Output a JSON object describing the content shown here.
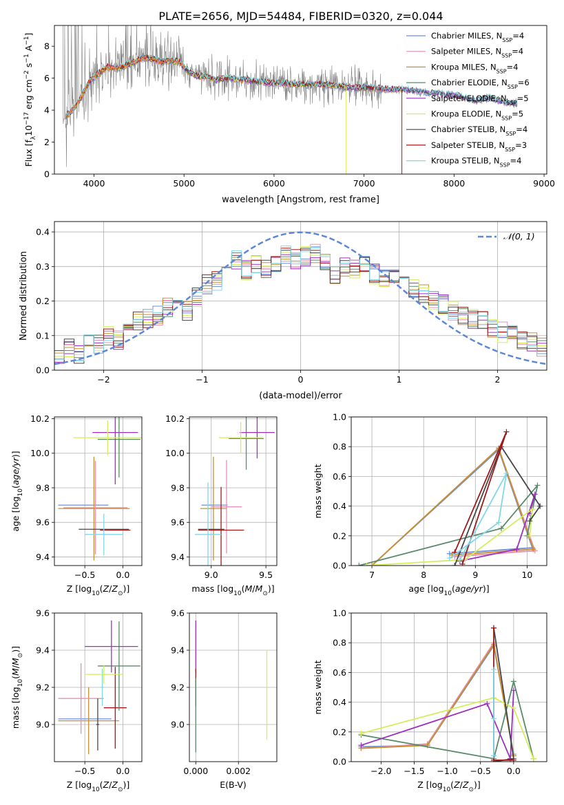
{
  "figure_title": "PLATE=2656, MJD=54484, FIBERID=0320, z=0.044",
  "colors": {
    "Chabrier MILES": "#6b8fdc",
    "Salpeter MILES": "#e68fb6",
    "Kroupa MILES": "#c8902a",
    "Chabrier ELODIE": "#5a8a6a",
    "Salpeter ELODIE": "#9b30c0",
    "Kroupa ELODIE": "#d4ee5a",
    "Chabrier STELIB": "#454545",
    "Salpeter STELIB": "#a01818",
    "Kroupa STELIB": "#7fd8e6",
    "data": "#808080",
    "fit_orange": "#e8783a",
    "gaussian": "#5b87d6",
    "grid": "#b0b0b0"
  },
  "chart_data": [
    {
      "id": "spectrum",
      "type": "line",
      "title": "PLATE=2656, MJD=54484, FIBERID=0320, z=0.044",
      "xlabel": "wavelength [Angstrom, rest frame]",
      "ylabel": "Flux [f_λ 10^-17 erg cm^-2 s^-1 A^-1]",
      "xlim": [
        3560,
        9030
      ],
      "ylim": [
        0,
        9.3
      ],
      "xticks": [
        4000,
        5000,
        6000,
        7000,
        8000,
        9000
      ],
      "yticks": [
        0,
        2,
        4,
        6,
        8
      ],
      "grid": false,
      "legend_position": "top-right",
      "legend": [
        {
          "name": "Chabrier MILES",
          "nssp": "4"
        },
        {
          "name": "Salpeter MILES",
          "nssp": "4"
        },
        {
          "name": "Kroupa MILES",
          "nssp": "4"
        },
        {
          "name": "Chabrier ELODIE",
          "nssp": "6"
        },
        {
          "name": "Salpeter ELODIE",
          "nssp": "5"
        },
        {
          "name": "Kroupa ELODIE",
          "nssp": "5"
        },
        {
          "name": "Chabrier STELIB",
          "nssp": "4"
        },
        {
          "name": "Salpeter STELIB",
          "nssp": "3"
        },
        {
          "name": "Kroupa STELIB",
          "nssp": "4"
        }
      ],
      "continuum": [
        [
          3680,
          3.6
        ],
        [
          3750,
          3.9
        ],
        [
          3850,
          4.7
        ],
        [
          3950,
          5.8
        ],
        [
          4050,
          6.3
        ],
        [
          4150,
          6.7
        ],
        [
          4250,
          6.6
        ],
        [
          4350,
          6.8
        ],
        [
          4450,
          7.0
        ],
        [
          4550,
          7.3
        ],
        [
          4650,
          7.2
        ],
        [
          4750,
          7.0
        ],
        [
          4850,
          7.1
        ],
        [
          4950,
          7.0
        ],
        [
          5050,
          6.4
        ],
        [
          5150,
          6.1
        ],
        [
          5250,
          6.1
        ],
        [
          5350,
          5.9
        ],
        [
          5500,
          6.0
        ],
        [
          5650,
          5.9
        ],
        [
          5800,
          5.8
        ],
        [
          5950,
          5.7
        ],
        [
          6100,
          5.7
        ],
        [
          6250,
          5.6
        ],
        [
          6400,
          5.6
        ],
        [
          6550,
          5.6
        ],
        [
          6700,
          5.5
        ],
        [
          6850,
          5.4
        ],
        [
          7000,
          5.4
        ],
        [
          7150,
          5.35
        ],
        [
          7300,
          5.3
        ],
        [
          7450,
          5.3
        ],
        [
          7600,
          5.2
        ],
        [
          7750,
          5.1
        ],
        [
          7900,
          5.0
        ],
        [
          8050,
          4.9
        ],
        [
          8150,
          4.7
        ],
        [
          8250,
          4.6
        ],
        [
          8400,
          4.8
        ],
        [
          8550,
          4.5
        ],
        [
          8700,
          4.4
        ]
      ],
      "data_end": 8700,
      "data_noise_peak_region": [
        3650,
        7200
      ]
    },
    {
      "id": "residuals",
      "type": "line",
      "xlabel": "(data-model)/error",
      "ylabel": "Normed distribution",
      "xlim": [
        -2.5,
        2.5
      ],
      "ylim": [
        0,
        0.43
      ],
      "xticks": [
        -2,
        -1,
        0,
        1,
        2
      ],
      "yticks": [
        0.0,
        0.1,
        0.2,
        0.3,
        0.4
      ],
      "grid": true,
      "legend_position": "top-right",
      "legend": [
        {
          "name": "𝒩(0, 1)"
        }
      ],
      "gaussian": {
        "mu": 0,
        "sigma": 1
      },
      "bins": [
        -2.5,
        -2.4,
        -2.3,
        -2.2,
        -2.1,
        -2.0,
        -1.9,
        -1.8,
        -1.7,
        -1.6,
        -1.5,
        -1.4,
        -1.3,
        -1.2,
        -1.1,
        -1.0,
        -0.9,
        -0.8,
        -0.7,
        -0.6,
        -0.5,
        -0.4,
        -0.3,
        -0.2,
        -0.1,
        0.0,
        0.1,
        0.2,
        0.3,
        0.4,
        0.5,
        0.6,
        0.7,
        0.8,
        0.9,
        1.0,
        1.1,
        1.2,
        1.3,
        1.4,
        1.5,
        1.6,
        1.7,
        1.8,
        1.9,
        2.0,
        2.1,
        2.2,
        2.3,
        2.4
      ],
      "base_hist": [
        0.035,
        0.06,
        0.045,
        0.085,
        0.075,
        0.1,
        0.09,
        0.13,
        0.14,
        0.15,
        0.16,
        0.18,
        0.2,
        0.17,
        0.21,
        0.25,
        0.26,
        0.3,
        0.32,
        0.29,
        0.31,
        0.29,
        0.3,
        0.33,
        0.32,
        0.33,
        0.34,
        0.32,
        0.28,
        0.3,
        0.29,
        0.31,
        0.28,
        0.27,
        0.26,
        0.25,
        0.24,
        0.22,
        0.2,
        0.19,
        0.17,
        0.16,
        0.15,
        0.14,
        0.12,
        0.11,
        0.1,
        0.09,
        0.08,
        0.07
      ]
    },
    {
      "id": "age_vs_Z",
      "type": "scatter",
      "xlabel": "Z [log10(Z/Z⊙)]",
      "ylabel": "age  [log10(age/yr)]",
      "xlim": [
        -0.9,
        0.25
      ],
      "ylim": [
        9.35,
        10.21
      ],
      "xticks": [
        -0.5,
        0.0
      ],
      "yticks": [
        9.4,
        9.6,
        9.8,
        10.0,
        10.2
      ],
      "grid": true,
      "points": [
        {
          "s": "Chabrier MILES",
          "x": -0.52,
          "y": 9.7,
          "xerr": 0.33,
          "yerr": 0.0
        },
        {
          "s": "Kroupa MILES",
          "x": -0.38,
          "y": 9.68,
          "xerr": 0.47,
          "yerr": 0.3
        },
        {
          "s": "Salpeter MILES",
          "x": -0.36,
          "y": 9.685,
          "xerr": 0.42,
          "yerr": 0.27
        },
        {
          "s": "Chabrier STELIB",
          "x": -0.25,
          "y": 9.56,
          "xerr": 0.33,
          "yerr": 0.0
        },
        {
          "s": "Salpeter STELIB",
          "x": -0.1,
          "y": 9.555,
          "xerr": 0.2,
          "yerr": 0.0
        },
        {
          "s": "Kroupa STELIB",
          "x": -0.25,
          "y": 9.53,
          "xerr": 0.25,
          "yerr": 0.12
        },
        {
          "s": "Chabrier ELODIE",
          "x": -0.05,
          "y": 10.08,
          "xerr": 0.28,
          "yerr": 0.22
        },
        {
          "s": "Salpeter ELODIE",
          "x": -0.1,
          "y": 10.12,
          "xerr": 0.3,
          "yerr": 0.3
        },
        {
          "s": "Kroupa ELODIE",
          "x": -0.2,
          "y": 10.09,
          "xerr": 0.45,
          "yerr": 0.1
        }
      ]
    },
    {
      "id": "age_vs_mass",
      "type": "scatter",
      "xlabel": "mass [log10(M/M⊙)]",
      "ylabel": "",
      "xlim": [
        8.8,
        9.6
      ],
      "ylim": [
        9.35,
        10.21
      ],
      "xticks": [
        9.0,
        9.5
      ],
      "yticks": [
        9.4,
        9.6,
        9.8,
        10.0,
        10.2
      ],
      "grid": true,
      "points": [
        {
          "s": "Chabrier MILES",
          "x": 9.03,
          "y": 9.7,
          "xerr": 0.12,
          "yerr": 0.0
        },
        {
          "s": "Kroupa MILES",
          "x": 9.02,
          "y": 9.68,
          "xerr": 0.12,
          "yerr": 0.3
        },
        {
          "s": "Salpeter MILES",
          "x": 9.14,
          "y": 9.69,
          "xerr": 0.14,
          "yerr": 0.27
        },
        {
          "s": "Chabrier STELIB",
          "x": 9.0,
          "y": 9.56,
          "xerr": 0.12,
          "yerr": 0.0
        },
        {
          "s": "Salpeter STELIB",
          "x": 9.09,
          "y": 9.555,
          "xerr": 0.21,
          "yerr": 0.25
        },
        {
          "s": "Kroupa STELIB",
          "x": 8.97,
          "y": 9.53,
          "xerr": 0.12,
          "yerr": 0.3
        },
        {
          "s": "Chabrier ELODIE",
          "x": 9.32,
          "y": 10.085,
          "xerr": 0.16,
          "yerr": 0.18
        },
        {
          "s": "Salpeter ELODIE",
          "x": 9.42,
          "y": 10.12,
          "xerr": 0.16,
          "yerr": 0.15
        },
        {
          "s": "Kroupa ELODIE",
          "x": 9.27,
          "y": 10.09,
          "xerr": 0.2,
          "yerr": 0.09
        }
      ]
    },
    {
      "id": "weight_vs_age",
      "type": "line",
      "xlabel": "age  [log10(age/yr)]",
      "ylabel": "mass weight",
      "xlim": [
        6.6,
        10.38
      ],
      "ylim": [
        0,
        1.0
      ],
      "xticks": [
        7,
        8,
        9,
        10
      ],
      "yticks": [
        0.0,
        0.2,
        0.4,
        0.6,
        0.8,
        1.0
      ],
      "grid": true,
      "series": [
        {
          "name": "Chabrier MILES",
          "x": [
            7.0,
            9.45,
            10.1,
            8.5
          ],
          "y": [
            0.0,
            0.78,
            0.12,
            0.08
          ]
        },
        {
          "name": "Salpeter MILES",
          "x": [
            7.0,
            9.45,
            10.15,
            8.6
          ],
          "y": [
            0.0,
            0.79,
            0.1,
            0.06
          ]
        },
        {
          "name": "Kroupa MILES",
          "x": [
            7.0,
            9.45,
            10.12,
            8.55
          ],
          "y": [
            0.0,
            0.79,
            0.11,
            0.07
          ]
        },
        {
          "name": "Chabrier ELODIE",
          "x": [
            6.75,
            9.5,
            10.2,
            10.0
          ],
          "y": [
            0.0,
            0.25,
            0.54,
            0.2
          ]
        },
        {
          "name": "Salpeter ELODIE",
          "x": [
            8.7,
            9.8,
            10.15,
            10.05
          ],
          "y": [
            0.03,
            0.11,
            0.48,
            0.35
          ]
        },
        {
          "name": "Kroupa ELODIE",
          "x": [
            6.9,
            8.8,
            10.1,
            10.05
          ],
          "y": [
            0.0,
            0.04,
            0.38,
            0.2
          ]
        },
        {
          "name": "Chabrier STELIB",
          "x": [
            8.6,
            9.5,
            10.25,
            10.05
          ],
          "y": [
            0.0,
            0.8,
            0.4,
            0.3
          ]
        },
        {
          "name": "Salpeter STELIB",
          "x": [
            8.6,
            9.6,
            8.75
          ],
          "y": [
            0.09,
            0.9,
            0.01
          ]
        },
        {
          "name": "Kroupa STELIB",
          "x": [
            8.5,
            9.45,
            9.6,
            8.7
          ],
          "y": [
            0.05,
            0.29,
            0.62,
            0.04
          ]
        }
      ]
    },
    {
      "id": "mass_vs_Z",
      "type": "scatter",
      "xlabel": "Z [log10(Z/Z⊙)]",
      "ylabel": "mass [log10(M/M⊙)]",
      "xlim": [
        -0.9,
        0.25
      ],
      "ylim": [
        8.8,
        9.6
      ],
      "xticks": [
        -0.5,
        0.0
      ],
      "yticks": [
        9.0,
        9.2,
        9.4,
        9.6
      ],
      "grid": true,
      "points": [
        {
          "s": "Chabrier MILES",
          "x": -0.5,
          "y": 9.03,
          "xerr": 0.35,
          "yerr": 0.0
        },
        {
          "s": "Kroupa MILES",
          "x": -0.45,
          "y": 9.02,
          "xerr": 0.4,
          "yerr": 0.18
        },
        {
          "s": "Salpeter MILES",
          "x": -0.55,
          "y": 9.14,
          "xerr": 0.3,
          "yerr": 0.19
        },
        {
          "s": "Chabrier STELIB",
          "x": -0.33,
          "y": 9.0,
          "xerr": 0.02,
          "yerr": 0.14
        },
        {
          "s": "Salpeter STELIB",
          "x": -0.1,
          "y": 9.09,
          "xerr": 0.15,
          "yerr": 0.22
        },
        {
          "s": "Kroupa STELIB",
          "x": -0.27,
          "y": 9.2,
          "xerr": 0.02,
          "yerr": 0.1
        },
        {
          "s": "Chabrier ELODIE",
          "x": -0.05,
          "y": 9.315,
          "xerr": 0.28,
          "yerr": 0.24
        },
        {
          "s": "Salpeter ELODIE",
          "x": -0.15,
          "y": 9.42,
          "xerr": 0.35,
          "yerr": 0.14
        },
        {
          "s": "Kroupa ELODIE",
          "x": -0.25,
          "y": 9.27,
          "xerr": 0.25,
          "yerr": 0.05
        }
      ]
    },
    {
      "id": "mass_vs_EBV",
      "type": "scatter",
      "xlabel": "E(B-V)",
      "ylabel": "",
      "xlim": [
        -0.0003,
        0.0038
      ],
      "ylim": [
        8.8,
        9.6
      ],
      "xticks": [
        0.0,
        0.002
      ],
      "xticklabels": [
        "0.000",
        "0.002"
      ],
      "yticks": [
        9.0,
        9.2,
        9.4,
        9.6
      ],
      "grid": true,
      "points": [
        {
          "s": "Salpeter ELODIE",
          "x": 0.0,
          "y": 9.42,
          "xerr": 0,
          "yerr": 0.14
        },
        {
          "s": "Salpeter STELIB",
          "x": 0.0,
          "y": 9.2,
          "xerr": 0,
          "yerr": 0.1
        },
        {
          "s": "Chabrier ELODIE",
          "x": 0.0,
          "y": 9.05,
          "xerr": 0,
          "yerr": 0.2
        },
        {
          "s": "Kroupa ELODIE",
          "x": 0.00333,
          "y": 9.16,
          "xerr": 0,
          "yerr": 0.24
        }
      ]
    },
    {
      "id": "weight_vs_Z",
      "type": "line",
      "xlabel": "Z [log10(Z/Z⊙)]",
      "ylabel": "mass weight",
      "xlim": [
        -2.45,
        0.5
      ],
      "ylim": [
        0,
        1.0
      ],
      "xticks": [
        -2.0,
        -1.5,
        -1.0,
        -0.5,
        0.0
      ],
      "yticks": [
        0.0,
        0.2,
        0.4,
        0.6,
        0.8,
        1.0
      ],
      "grid": true,
      "series": [
        {
          "name": "Chabrier MILES",
          "x": [
            -2.3,
            -1.3,
            -0.3,
            0.0
          ],
          "y": [
            0.1,
            0.11,
            0.78,
            0.05
          ]
        },
        {
          "name": "Salpeter MILES",
          "x": [
            -2.3,
            -1.3,
            -0.3,
            0.0
          ],
          "y": [
            0.09,
            0.12,
            0.8,
            0.04
          ]
        },
        {
          "name": "Kroupa MILES",
          "x": [
            -2.3,
            -1.3,
            -0.3,
            0.0
          ],
          "y": [
            0.09,
            0.11,
            0.79,
            0.04
          ]
        },
        {
          "name": "Chabrier ELODIE",
          "x": [
            -2.3,
            -0.3,
            0.0,
            0.3
          ],
          "y": [
            0.18,
            0.02,
            0.54,
            0.02
          ]
        },
        {
          "name": "Salpeter ELODIE",
          "x": [
            -2.3,
            -0.4,
            -0.05,
            0.0
          ],
          "y": [
            0.11,
            0.39,
            0.02,
            0.48
          ]
        },
        {
          "name": "Kroupa ELODIE",
          "x": [
            -2.3,
            -0.3,
            0.0,
            0.3
          ],
          "y": [
            0.19,
            0.43,
            0.36,
            0.02
          ]
        },
        {
          "name": "Chabrier STELIB",
          "x": [
            -0.3,
            0.0,
            -0.3
          ],
          "y": [
            0.9,
            0.02,
            0.0
          ]
        },
        {
          "name": "Salpeter STELIB",
          "x": [
            -0.3,
            -0.3,
            0.0
          ],
          "y": [
            0.9,
            0.01,
            0.01
          ]
        },
        {
          "name": "Kroupa STELIB",
          "x": [
            -0.3,
            -0.3,
            -0.3
          ],
          "y": [
            0.62,
            0.29,
            0.04
          ]
        }
      ]
    }
  ]
}
